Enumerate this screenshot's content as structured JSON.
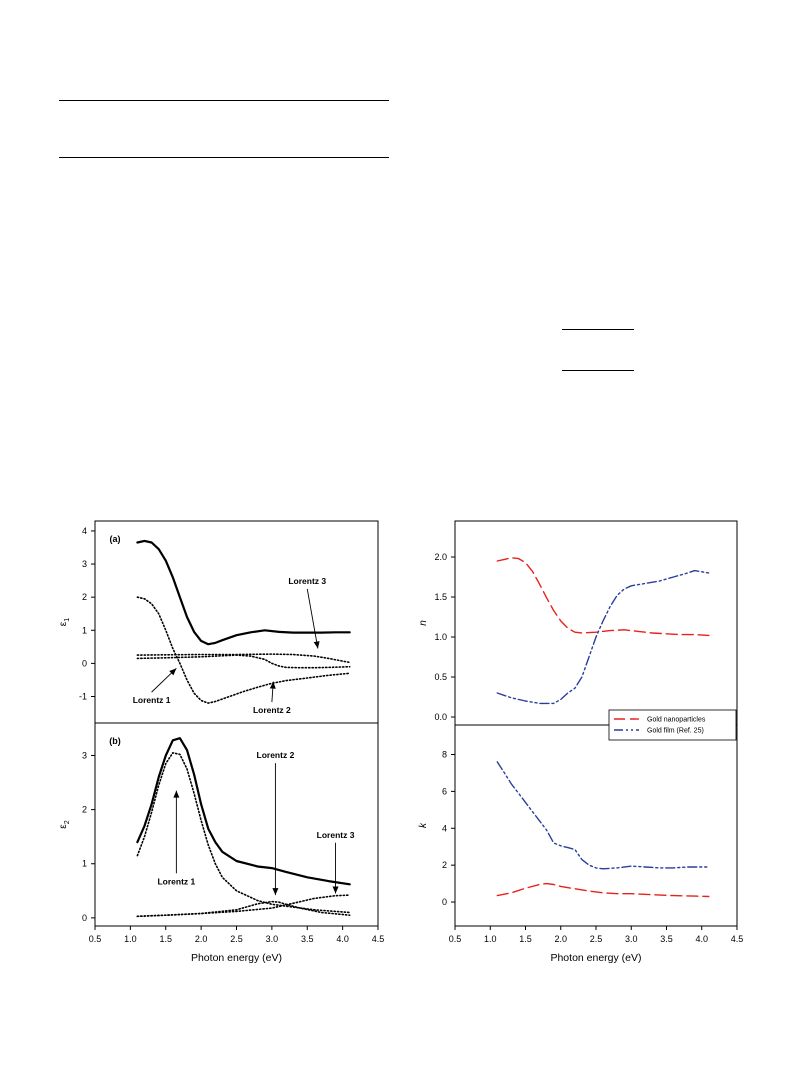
{
  "page": {
    "rules": [
      "table-rule-top",
      "table-rule-mid",
      "eq-rule-1",
      "eq-rule-2"
    ]
  },
  "chart_data": [
    {
      "panel": "a",
      "label": "(a)",
      "type": "line",
      "ylabel": "ε1",
      "xlim": [
        0.5,
        4.5
      ],
      "ylim": [
        -1.8,
        4.3
      ],
      "yticks": [
        "4",
        "3",
        "2",
        "1",
        "0",
        "-1"
      ],
      "series": [
        {
          "role": "total",
          "style": "solid",
          "x": [
            1.1,
            1.2,
            1.3,
            1.4,
            1.5,
            1.6,
            1.7,
            1.8,
            1.9,
            2.0,
            2.1,
            2.2,
            2.3,
            2.5,
            2.7,
            2.9,
            3.1,
            3.3,
            3.5,
            3.7,
            3.9,
            4.1
          ],
          "y": [
            3.65,
            3.7,
            3.65,
            3.45,
            3.1,
            2.6,
            2.0,
            1.4,
            0.95,
            0.68,
            0.58,
            0.62,
            0.7,
            0.85,
            0.94,
            1.0,
            0.95,
            0.93,
            0.93,
            0.93,
            0.94,
            0.94
          ]
        },
        {
          "role": "Lorentz 1",
          "style": "dotted",
          "x": [
            1.1,
            1.2,
            1.3,
            1.4,
            1.5,
            1.6,
            1.7,
            1.8,
            1.9,
            2.0,
            2.1,
            2.2,
            2.4,
            2.6,
            2.8,
            3.0,
            3.2,
            3.5,
            3.8,
            4.1
          ],
          "y": [
            2.0,
            1.95,
            1.8,
            1.5,
            1.0,
            0.45,
            0.0,
            -0.5,
            -0.9,
            -1.12,
            -1.2,
            -1.15,
            -1.0,
            -0.85,
            -0.72,
            -0.6,
            -0.52,
            -0.44,
            -0.36,
            -0.3
          ]
        },
        {
          "role": "Lorentz 2",
          "style": "dotted",
          "x": [
            1.1,
            1.5,
            2.0,
            2.5,
            2.7,
            2.9,
            3.0,
            3.1,
            3.2,
            3.4,
            3.6,
            3.8,
            4.1
          ],
          "y": [
            0.15,
            0.17,
            0.2,
            0.25,
            0.22,
            0.12,
            0.0,
            -0.08,
            -0.12,
            -0.13,
            -0.13,
            -0.12,
            -0.1
          ]
        },
        {
          "role": "Lorentz 3",
          "style": "dotted",
          "x": [
            1.1,
            1.5,
            2.0,
            2.5,
            3.0,
            3.3,
            3.6,
            3.8,
            4.0,
            4.1
          ],
          "y": [
            0.25,
            0.26,
            0.27,
            0.27,
            0.28,
            0.27,
            0.22,
            0.15,
            0.07,
            0.03
          ]
        }
      ],
      "annotations": [
        {
          "text": "Lorentz 3",
          "x": 3.5,
          "y": 2.4,
          "tx": 3.65,
          "ty": 0.45
        },
        {
          "text": "Lorentz 1",
          "x": 1.3,
          "y": -1.2,
          "tx": 1.65,
          "ty": -0.15
        },
        {
          "text": "Lorentz 2",
          "x": 3.0,
          "y": -1.5,
          "tx": 3.02,
          "ty": -0.55
        }
      ]
    },
    {
      "panel": "b",
      "label": "(b)",
      "type": "line",
      "ylabel": "ε2",
      "xlabel": "Photon energy (eV)",
      "xlim": [
        0.5,
        4.5
      ],
      "ylim": [
        -0.15,
        3.6
      ],
      "yticks": [
        "3",
        "2",
        "1",
        "0"
      ],
      "xticks": [
        "0.5",
        "1.0",
        "1.5",
        "2.0",
        "2.5",
        "3.0",
        "3.5",
        "4.0",
        "4.5"
      ],
      "series": [
        {
          "role": "total",
          "style": "solid",
          "x": [
            1.1,
            1.2,
            1.3,
            1.4,
            1.5,
            1.6,
            1.7,
            1.8,
            1.9,
            2.0,
            2.1,
            2.2,
            2.3,
            2.5,
            2.8,
            3.0,
            3.2,
            3.5,
            3.8,
            4.1
          ],
          "y": [
            1.4,
            1.7,
            2.1,
            2.6,
            3.0,
            3.28,
            3.32,
            3.1,
            2.65,
            2.1,
            1.65,
            1.4,
            1.22,
            1.05,
            0.95,
            0.92,
            0.85,
            0.75,
            0.68,
            0.62
          ]
        },
        {
          "role": "Lorentz 1",
          "style": "dotted",
          "x": [
            1.1,
            1.2,
            1.3,
            1.4,
            1.5,
            1.6,
            1.7,
            1.8,
            1.9,
            2.0,
            2.1,
            2.2,
            2.3,
            2.5,
            2.8,
            3.0,
            3.3,
            3.6,
            4.1
          ],
          "y": [
            1.15,
            1.5,
            1.95,
            2.45,
            2.85,
            3.05,
            3.02,
            2.75,
            2.3,
            1.8,
            1.35,
            1.0,
            0.75,
            0.5,
            0.32,
            0.25,
            0.2,
            0.15,
            0.1
          ]
        },
        {
          "role": "Lorentz 2",
          "style": "dotted",
          "x": [
            1.1,
            1.5,
            2.0,
            2.5,
            2.8,
            3.0,
            3.1,
            3.2,
            3.4,
            3.7,
            4.1
          ],
          "y": [
            0.03,
            0.05,
            0.08,
            0.15,
            0.26,
            0.3,
            0.29,
            0.25,
            0.18,
            0.1,
            0.05
          ]
        },
        {
          "role": "Lorentz 3",
          "style": "dotted",
          "x": [
            1.1,
            1.5,
            2.0,
            2.5,
            3.0,
            3.3,
            3.6,
            3.9,
            4.1
          ],
          "y": [
            0.03,
            0.05,
            0.08,
            0.12,
            0.18,
            0.27,
            0.36,
            0.41,
            0.42
          ]
        }
      ],
      "annotations": [
        {
          "text": "Lorentz 1",
          "x": 1.65,
          "y": 0.62,
          "tx": 1.65,
          "ty": 2.35
        },
        {
          "text": "Lorentz 2",
          "x": 3.05,
          "y": 2.95,
          "tx": 3.05,
          "ty": 0.42
        },
        {
          "text": "Lorentz 3",
          "x": 3.9,
          "y": 1.48,
          "tx": 3.9,
          "ty": 0.45
        }
      ]
    },
    {
      "panel": "n",
      "type": "line",
      "ylabel": "n",
      "xlim": [
        0.5,
        4.5
      ],
      "ylim": [
        -0.1,
        2.45
      ],
      "yticks": [
        "2.0",
        "1.5",
        "1.0",
        "0.5",
        "0.0"
      ],
      "series": [
        {
          "name": "Gold nanoparticles",
          "style": "dashed",
          "color": "#e8211c",
          "x": [
            1.1,
            1.2,
            1.3,
            1.4,
            1.5,
            1.6,
            1.7,
            1.8,
            1.9,
            2.0,
            2.1,
            2.2,
            2.3,
            2.5,
            2.7,
            2.9,
            3.1,
            3.3,
            3.5,
            3.7,
            3.9,
            4.1
          ],
          "y": [
            1.95,
            1.97,
            1.99,
            1.98,
            1.93,
            1.82,
            1.66,
            1.49,
            1.33,
            1.2,
            1.11,
            1.06,
            1.05,
            1.06,
            1.08,
            1.09,
            1.07,
            1.05,
            1.04,
            1.03,
            1.03,
            1.02
          ]
        },
        {
          "name": "Gold film (Ref. 25)",
          "style": "dashdotdot",
          "color": "#2a3f99",
          "x": [
            1.1,
            1.3,
            1.5,
            1.7,
            1.9,
            2.0,
            2.1,
            2.2,
            2.3,
            2.4,
            2.5,
            2.6,
            2.7,
            2.8,
            2.9,
            3.0,
            3.2,
            3.4,
            3.6,
            3.8,
            3.9,
            4.1
          ],
          "y": [
            0.3,
            0.24,
            0.2,
            0.17,
            0.17,
            0.22,
            0.3,
            0.36,
            0.5,
            0.75,
            1.0,
            1.2,
            1.38,
            1.52,
            1.6,
            1.64,
            1.67,
            1.7,
            1.75,
            1.8,
            1.83,
            1.8
          ]
        }
      ],
      "legend": {
        "position": "bottom-right"
      }
    },
    {
      "panel": "k",
      "type": "line",
      "ylabel": "k",
      "xlabel": "Photon energy (eV)",
      "xlim": [
        0.5,
        4.5
      ],
      "ylim": [
        -1.3,
        9.6
      ],
      "yticks": [
        "8",
        "6",
        "4",
        "2",
        "0"
      ],
      "xticks": [
        "0.5",
        "1.0",
        "1.5",
        "2.0",
        "2.5",
        "3.0",
        "3.5",
        "4.0",
        "4.5"
      ],
      "series": [
        {
          "name": "Gold nanoparticles",
          "style": "dashed",
          "color": "#e8211c",
          "x": [
            1.1,
            1.3,
            1.5,
            1.7,
            1.8,
            1.9,
            2.0,
            2.2,
            2.4,
            2.6,
            2.8,
            3.0,
            3.3,
            3.6,
            3.9,
            4.1
          ],
          "y": [
            0.35,
            0.5,
            0.75,
            0.95,
            1.0,
            0.95,
            0.85,
            0.72,
            0.6,
            0.5,
            0.45,
            0.45,
            0.4,
            0.35,
            0.32,
            0.3
          ]
        },
        {
          "name": "Gold film (Ref. 25)",
          "style": "dashdotdot",
          "color": "#2a3f99",
          "x": [
            1.1,
            1.2,
            1.3,
            1.4,
            1.5,
            1.6,
            1.7,
            1.8,
            1.9,
            2.0,
            2.1,
            2.2,
            2.3,
            2.4,
            2.5,
            2.6,
            2.8,
            3.0,
            3.2,
            3.4,
            3.6,
            3.8,
            4.1
          ],
          "y": [
            7.6,
            7.0,
            6.4,
            5.9,
            5.4,
            4.9,
            4.4,
            3.9,
            3.2,
            3.05,
            2.95,
            2.85,
            2.3,
            2.0,
            1.85,
            1.8,
            1.85,
            1.95,
            1.9,
            1.85,
            1.85,
            1.9,
            1.9
          ]
        }
      ]
    }
  ]
}
